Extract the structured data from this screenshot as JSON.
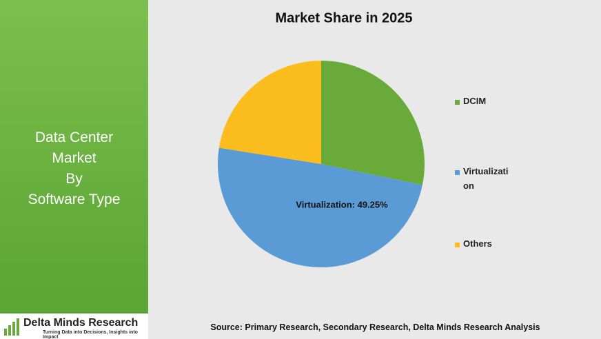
{
  "panel": {
    "lines": [
      "Data Center",
      "Market",
      "By",
      "Software Type"
    ]
  },
  "logo": {
    "name": "Delta Minds Research",
    "tagline": "Turning Data into Decisions, Insights into Impact"
  },
  "chart_data": {
    "type": "pie",
    "title": "Market Share in 2025",
    "categories": [
      "DCIM",
      "Virtualization",
      "Others"
    ],
    "values": [
      28.25,
      49.25,
      22.5
    ],
    "value_labels": [
      null,
      "Virtualization: 49.25%",
      null
    ],
    "colors": [
      "#6aaa3a",
      "#5b9bd5",
      "#fbbd1e"
    ],
    "legend": "right"
  },
  "source": "Source: Primary Research, Secondary Research, Delta Minds Research Analysis"
}
